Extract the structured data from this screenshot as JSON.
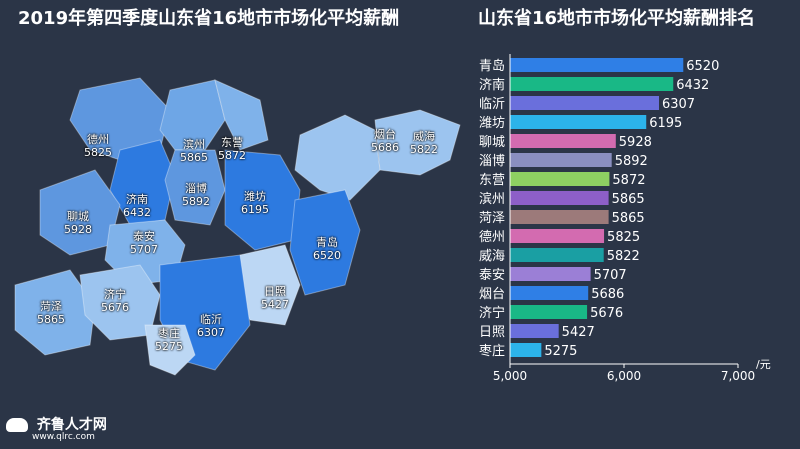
{
  "map": {
    "title": "2019年第四季度山东省16地市市场化平均薪酬",
    "cities": [
      {
        "name": "德州",
        "value": "5825"
      },
      {
        "name": "滨州",
        "value": "5865"
      },
      {
        "name": "东营",
        "value": "5872"
      },
      {
        "name": "烟台",
        "value": "5686"
      },
      {
        "name": "威海",
        "value": "5822"
      },
      {
        "name": "济南",
        "value": "6432"
      },
      {
        "name": "淄博",
        "value": "5892"
      },
      {
        "name": "潍坊",
        "value": "6195"
      },
      {
        "name": "聊城",
        "value": "5928"
      },
      {
        "name": "泰安",
        "value": "5707"
      },
      {
        "name": "青岛",
        "value": "6520"
      },
      {
        "name": "菏泽",
        "value": "5865"
      },
      {
        "name": "济宁",
        "value": "5676"
      },
      {
        "name": "日照",
        "value": "5427"
      },
      {
        "name": "临沂",
        "value": "6307"
      },
      {
        "name": "枣庄",
        "value": "5275"
      }
    ]
  },
  "logo": {
    "name": "齐鲁人才网",
    "url": "www.qlrc.com"
  },
  "colors": {
    "background": "#2b3547"
  },
  "chart_data": {
    "type": "bar",
    "orientation": "horizontal",
    "title": "山东省16地市市场化平均薪酬排名",
    "categories": [
      "青岛",
      "济南",
      "临沂",
      "潍坊",
      "聊城",
      "淄博",
      "东营",
      "滨州",
      "菏泽",
      "德州",
      "威海",
      "泰安",
      "烟台",
      "济宁",
      "日照",
      "枣庄"
    ],
    "values": [
      6520,
      6432,
      6307,
      6195,
      5928,
      5892,
      5872,
      5865,
      5865,
      5825,
      5822,
      5707,
      5686,
      5676,
      5427,
      5275
    ],
    "value_labels": [
      "6520",
      "6432",
      "6307",
      "6195",
      "5928",
      "5892",
      "5872",
      "5865",
      "5865",
      "5825",
      "5822",
      "5707",
      "5686",
      "5676",
      "5427",
      "5275"
    ],
    "bar_colors": [
      "#2f7fe6",
      "#19b886",
      "#6a6fdc",
      "#2cb3ea",
      "#d36bb0",
      "#8a8fc0",
      "#8ed062",
      "#8d5fc8",
      "#9c7a7a",
      "#d36bb0",
      "#1a9fa3",
      "#9b7fd6",
      "#2f7fe6",
      "#19b886",
      "#6a6fdc",
      "#2cb3ea"
    ],
    "xlim": [
      5000,
      7000
    ],
    "xticks": [
      "5,000",
      "6,000",
      "7,000"
    ],
    "xunit": "/元",
    "grid": false,
    "legend": "none"
  }
}
